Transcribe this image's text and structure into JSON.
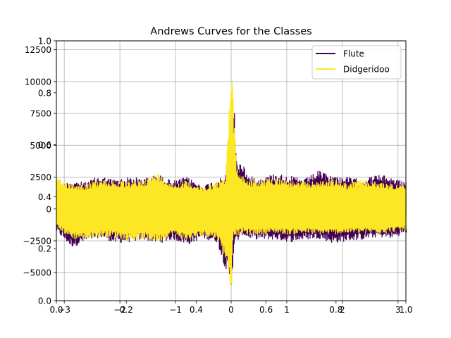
{
  "chart_data": {
    "type": "line",
    "title": "Andrews Curves for the Classes",
    "xlabel": "",
    "ylabel": "",
    "x_range": [
      -3.14159,
      3.14159
    ],
    "ylim": [
      -7200,
      13200
    ],
    "xticks": [
      {
        "value": -3,
        "label": "−3"
      },
      {
        "value": -2,
        "label": "−2"
      },
      {
        "value": -1,
        "label": "−1"
      },
      {
        "value": 0,
        "label": "0"
      },
      {
        "value": 1,
        "label": "1"
      },
      {
        "value": 2,
        "label": "2"
      },
      {
        "value": 3,
        "label": "3"
      }
    ],
    "yticks": [
      {
        "value": -5000,
        "label": "−5000"
      },
      {
        "value": -2500,
        "label": "−2500"
      },
      {
        "value": 0,
        "label": "0"
      },
      {
        "value": 2500,
        "label": "2500"
      },
      {
        "value": 5000,
        "label": "5000"
      },
      {
        "value": 7500,
        "label": "7500"
      },
      {
        "value": 10000,
        "label": "10000"
      },
      {
        "value": 12500,
        "label": "12500"
      }
    ],
    "background_axis": {
      "xticks": [
        "0.0",
        "0.2",
        "0.4",
        "0.6",
        "0.8",
        "1.0"
      ],
      "yticks": [
        "0.0",
        "0.2",
        "0.4",
        "0.6",
        "0.8",
        "1.0"
      ]
    },
    "grid": true,
    "legend_position": "upper right",
    "series": [
      {
        "name": "Flute",
        "color": "#440154",
        "x": [
          -3.14,
          -2.88,
          -2.62,
          -2.36,
          -2.09,
          -1.83,
          -1.57,
          -1.31,
          -1.05,
          -0.79,
          -0.52,
          -0.26,
          -0.1,
          0.0,
          0.05,
          0.1,
          0.2,
          0.3,
          0.52,
          0.79,
          1.05,
          1.31,
          1.57,
          1.83,
          2.09,
          2.36,
          2.62,
          2.88,
          3.14
        ],
        "y_upper": [
          1800,
          2200,
          2100,
          2600,
          2300,
          2500,
          2400,
          2700,
          2200,
          2500,
          1800,
          2300,
          2500,
          8500,
          9000,
          3500,
          3800,
          2600,
          2400,
          2800,
          2600,
          2300,
          3000,
          2600,
          2500,
          2300,
          2700,
          2500,
          2100
        ],
        "y_lower": [
          -1800,
          -3000,
          -2600,
          -2200,
          -2700,
          -2600,
          -2400,
          -2700,
          -2400,
          -2800,
          -2300,
          -2600,
          -4800,
          -6200,
          -2800,
          -2600,
          -2000,
          -2300,
          -2400,
          -2400,
          -2600,
          -2400,
          -2300,
          -2700,
          -2500,
          -2400,
          -2200,
          -2300,
          -1900
        ]
      },
      {
        "name": "Didgeridoo",
        "color": "#fde725",
        "x": [
          -3.14,
          -2.88,
          -2.62,
          -2.36,
          -2.09,
          -1.83,
          -1.57,
          -1.31,
          -1.05,
          -0.79,
          -0.52,
          -0.26,
          -0.1,
          0.0,
          0.02,
          0.05,
          0.1,
          0.2,
          0.3,
          0.52,
          0.79,
          1.05,
          1.31,
          1.57,
          1.83,
          2.09,
          2.36,
          2.62,
          2.88,
          3.14
        ],
        "y_upper": [
          2400,
          2000,
          1900,
          2300,
          2200,
          2100,
          2300,
          2800,
          2000,
          2200,
          1700,
          2100,
          2400,
          11000,
          12500,
          7500,
          3200,
          2700,
          2300,
          2200,
          2500,
          2200,
          2100,
          2200,
          2300,
          2000,
          2300,
          2100,
          2000,
          1800
        ],
        "y_lower": [
          -1500,
          -2300,
          -2400,
          -2200,
          -2200,
          -2500,
          -2400,
          -2600,
          -2000,
          -2500,
          -2100,
          -2300,
          -4000,
          -6500,
          -2500,
          -2000,
          -2100,
          -1900,
          -2000,
          -2000,
          -1900,
          -2000,
          -1900,
          -2000,
          -2000,
          -1900,
          -1900,
          -1900,
          -1800,
          -1700
        ]
      }
    ]
  }
}
